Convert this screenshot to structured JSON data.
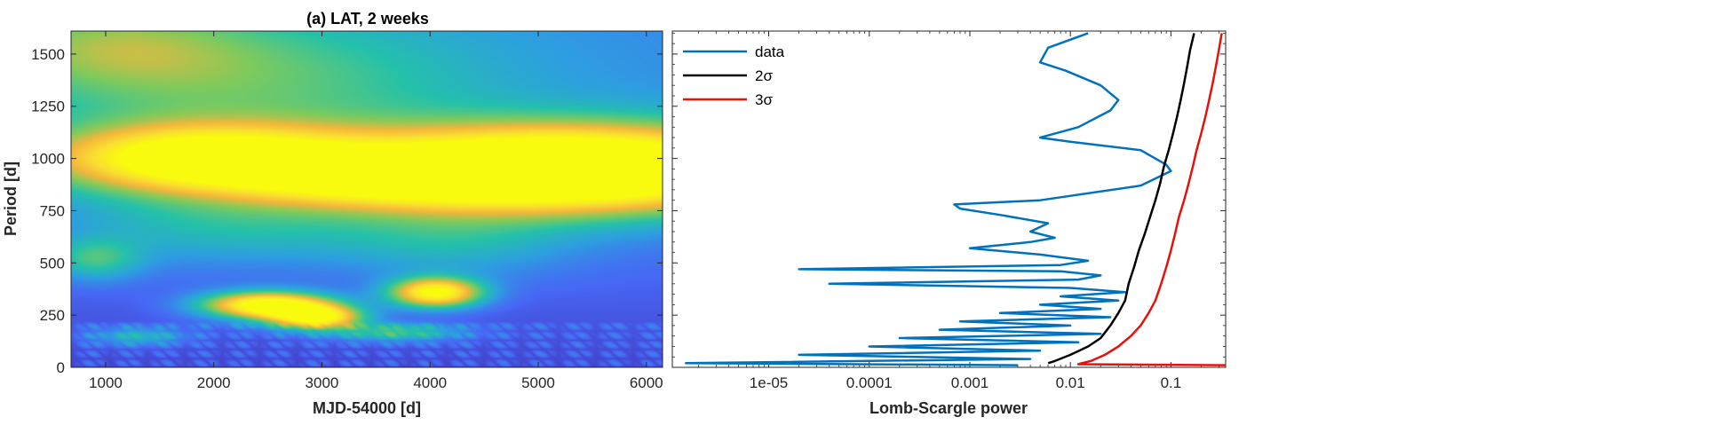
{
  "chart_data": [
    {
      "type": "heatmap",
      "title": "(a) LAT, 2 weeks",
      "xlabel": "MJD-54000 [d]",
      "ylabel": "Period [d]",
      "xlim": [
        680,
        6150
      ],
      "ylim": [
        0,
        1610
      ],
      "xticks": [
        1000,
        2000,
        3000,
        4000,
        5000,
        6000
      ],
      "xtick_labels": [
        "1000",
        "2000",
        "3000",
        "4000",
        "5000",
        "6000"
      ],
      "yticks": [
        0,
        250,
        500,
        750,
        1000,
        1250,
        1500
      ],
      "ytick_labels": [
        "0",
        "250",
        "500",
        "750",
        "1000",
        "1250",
        "1500"
      ],
      "colormap": [
        "#3e26a8",
        "#4767f5",
        "#2d9fe0",
        "#24c1aa",
        "#7fca5c",
        "#f5b73a",
        "#f9e02f",
        "#f9fb0e"
      ],
      "blobs": [
        {
          "x": 1900,
          "y": 1000,
          "sx": 1000,
          "sy": 110,
          "amp": 0.92
        },
        {
          "x": 5300,
          "y": 950,
          "sx": 1400,
          "sy": 140,
          "amp": 1.3
        },
        {
          "x": 3500,
          "y": 900,
          "sx": 900,
          "sy": 90,
          "amp": 0.45
        },
        {
          "x": 2300,
          "y": 1380,
          "sx": 1600,
          "sy": 230,
          "amp": 0.28
        },
        {
          "x": 1000,
          "y": 1550,
          "sx": 900,
          "sy": 150,
          "amp": 0.25
        },
        {
          "x": 2500,
          "y": 300,
          "sx": 420,
          "sy": 45,
          "amp": 1.0
        },
        {
          "x": 2950,
          "y": 240,
          "sx": 300,
          "sy": 40,
          "amp": 0.85
        },
        {
          "x": 4050,
          "y": 360,
          "sx": 300,
          "sy": 50,
          "amp": 0.9
        },
        {
          "x": 2100,
          "y": 680,
          "sx": 1000,
          "sy": 130,
          "amp": 0.22
        },
        {
          "x": 4200,
          "y": 600,
          "sx": 800,
          "sy": 120,
          "amp": 0.2
        },
        {
          "x": 900,
          "y": 520,
          "sx": 300,
          "sy": 70,
          "amp": 0.3
        },
        {
          "x": 3700,
          "y": 170,
          "sx": 400,
          "sy": 30,
          "amp": 0.35
        },
        {
          "x": 1300,
          "y": 150,
          "sx": 300,
          "sy": 30,
          "amp": 0.25
        }
      ],
      "base_level": 0.22,
      "high_period_base": 0.17
    },
    {
      "type": "line",
      "xlabel": "Lomb-Scargle power",
      "xscale": "log",
      "xlim": [
        1.1e-06,
        0.35
      ],
      "ylim": [
        0,
        1610
      ],
      "xticks": [
        1e-05,
        0.0001,
        0.001,
        0.01,
        0.1
      ],
      "xtick_labels": [
        "1e-05",
        "0.0001",
        "0.001",
        "0.01",
        "0.1"
      ],
      "legend_position": "top-left",
      "series": [
        {
          "name": "data",
          "color": "#0072bd",
          "points": [
            [
              0.015,
              1600
            ],
            [
              0.006,
              1530
            ],
            [
              0.005,
              1460
            ],
            [
              0.009,
              1420
            ],
            [
              0.02,
              1350
            ],
            [
              0.03,
              1280
            ],
            [
              0.025,
              1230
            ],
            [
              0.012,
              1150
            ],
            [
              0.005,
              1100
            ],
            [
              0.01,
              1080
            ],
            [
              0.05,
              1040
            ],
            [
              0.09,
              970
            ],
            [
              0.1,
              940
            ],
            [
              0.05,
              870
            ],
            [
              0.005,
              800
            ],
            [
              0.0007,
              780
            ],
            [
              0.0008,
              760
            ],
            [
              0.002,
              730
            ],
            [
              0.006,
              690
            ],
            [
              0.004,
              650
            ],
            [
              0.007,
              620
            ],
            [
              0.004,
              600
            ],
            [
              0.001,
              570
            ],
            [
              0.005,
              540
            ],
            [
              0.015,
              510
            ],
            [
              0.008,
              490
            ],
            [
              2e-05,
              470
            ],
            [
              0.008,
              460
            ],
            [
              0.02,
              440
            ],
            [
              0.012,
              420
            ],
            [
              4e-05,
              400
            ],
            [
              0.01,
              380
            ],
            [
              0.035,
              360
            ],
            [
              0.008,
              340
            ],
            [
              0.03,
              320
            ],
            [
              0.005,
              300
            ],
            [
              0.02,
              280
            ],
            [
              0.002,
              260
            ],
            [
              0.025,
              240
            ],
            [
              0.0008,
              220
            ],
            [
              0.01,
              200
            ],
            [
              0.0005,
              180
            ],
            [
              0.02,
              160
            ],
            [
              0.0002,
              140
            ],
            [
              0.012,
              120
            ],
            [
              0.0001,
              100
            ],
            [
              0.005,
              80
            ],
            [
              2e-05,
              60
            ],
            [
              0.004,
              40
            ],
            [
              1.5e-06,
              20
            ],
            [
              0.003,
              10
            ]
          ]
        },
        {
          "name": "2σ",
          "color": "#000000",
          "points": [
            [
              0.006,
              20
            ],
            [
              0.007,
              30
            ],
            [
              0.01,
              60
            ],
            [
              0.015,
              100
            ],
            [
              0.02,
              140
            ],
            [
              0.025,
              200
            ],
            [
              0.03,
              260
            ],
            [
              0.035,
              320
            ],
            [
              0.038,
              400
            ],
            [
              0.043,
              480
            ],
            [
              0.048,
              560
            ],
            [
              0.055,
              640
            ],
            [
              0.062,
              720
            ],
            [
              0.07,
              800
            ],
            [
              0.078,
              880
            ],
            [
              0.085,
              960
            ],
            [
              0.095,
              1040
            ],
            [
              0.105,
              1120
            ],
            [
              0.115,
              1200
            ],
            [
              0.125,
              1280
            ],
            [
              0.135,
              1360
            ],
            [
              0.145,
              1440
            ],
            [
              0.155,
              1520
            ],
            [
              0.17,
              1600
            ]
          ]
        },
        {
          "name": "3σ",
          "color": "#e3120b",
          "points": [
            [
              0.35,
              10
            ],
            [
              0.012,
              15
            ],
            [
              0.013,
              20
            ],
            [
              0.016,
              30
            ],
            [
              0.022,
              60
            ],
            [
              0.03,
              100
            ],
            [
              0.04,
              150
            ],
            [
              0.05,
              200
            ],
            [
              0.06,
              260
            ],
            [
              0.07,
              320
            ],
            [
              0.08,
              400
            ],
            [
              0.09,
              480
            ],
            [
              0.1,
              560
            ],
            [
              0.11,
              640
            ],
            [
              0.12,
              720
            ],
            [
              0.135,
              800
            ],
            [
              0.15,
              880
            ],
            [
              0.165,
              960
            ],
            [
              0.18,
              1040
            ],
            [
              0.2,
              1120
            ],
            [
              0.22,
              1200
            ],
            [
              0.24,
              1280
            ],
            [
              0.26,
              1360
            ],
            [
              0.28,
              1440
            ],
            [
              0.3,
              1520
            ],
            [
              0.32,
              1600
            ]
          ]
        }
      ]
    }
  ]
}
